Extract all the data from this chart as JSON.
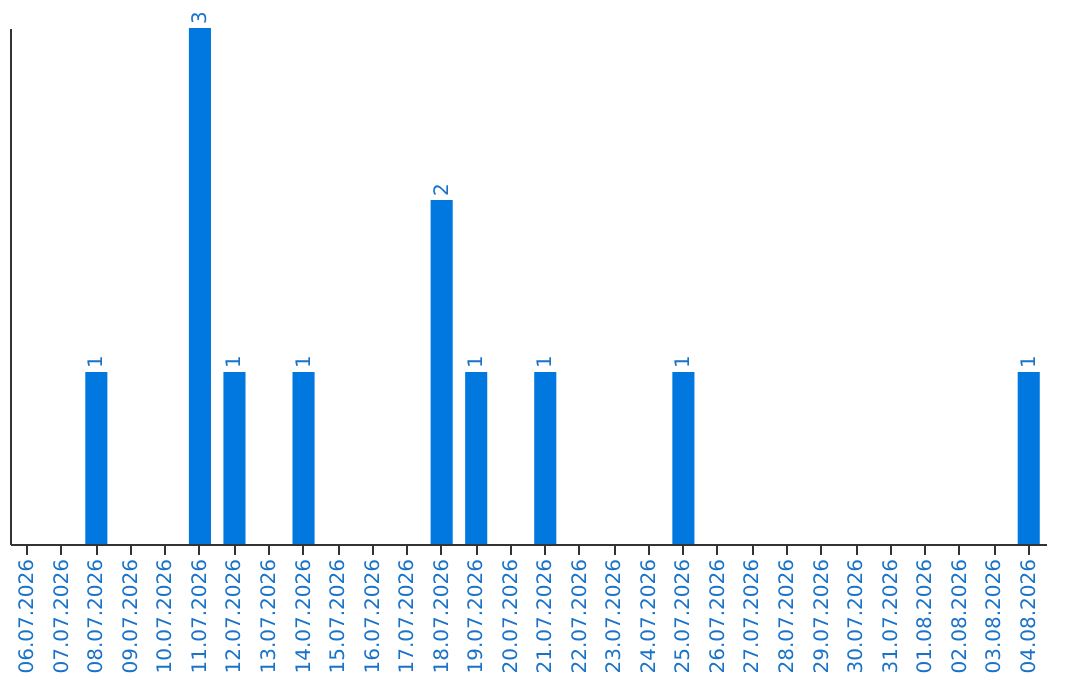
{
  "chart_data": {
    "type": "bar",
    "categories": [
      "06.07.2026",
      "07.07.2026",
      "08.07.2026",
      "09.07.2026",
      "10.07.2026",
      "11.07.2026",
      "12.07.2026",
      "13.07.2026",
      "14.07.2026",
      "15.07.2026",
      "16.07.2026",
      "17.07.2026",
      "18.07.2026",
      "19.07.2026",
      "20.07.2026",
      "21.07.2026",
      "22.07.2026",
      "23.07.2026",
      "24.07.2026",
      "25.07.2026",
      "26.07.2026",
      "27.07.2026",
      "28.07.2026",
      "29.07.2026",
      "30.07.2026",
      "31.07.2026",
      "01.08.2026",
      "02.08.2026",
      "03.08.2026",
      "04.08.2026"
    ],
    "values": [
      0,
      0,
      1,
      0,
      0,
      3,
      1,
      0,
      1,
      0,
      0,
      0,
      2,
      1,
      0,
      1,
      0,
      0,
      0,
      1,
      0,
      0,
      0,
      0,
      0,
      0,
      0,
      0,
      0,
      1
    ],
    "value_labels": [
      null,
      null,
      "1",
      null,
      null,
      "3",
      "1",
      null,
      "1",
      null,
      null,
      null,
      "2",
      "1",
      null,
      "1",
      null,
      null,
      null,
      "1",
      null,
      null,
      null,
      null,
      null,
      null,
      null,
      null,
      null,
      "1"
    ],
    "color": "#0078e0",
    "tick_labels": "x",
    "grid": false
  }
}
